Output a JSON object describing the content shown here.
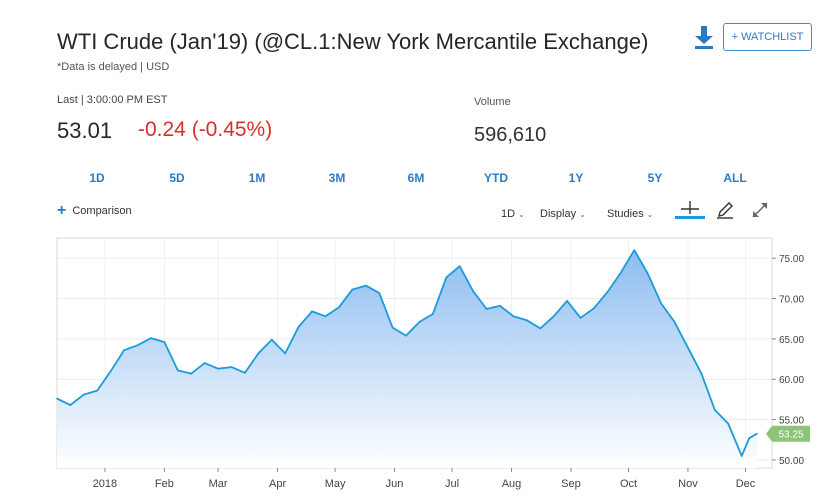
{
  "header": {
    "title": "WTI Crude (Jan'19) (@CL.1:New York Mercantile Exchange)",
    "subtitle": "*Data is delayed | USD",
    "watchlist_label": "+ WATCHLIST",
    "download_icon": "download-icon"
  },
  "quote": {
    "last_label": "Last | 3:00:00 PM EST",
    "price": "53.01",
    "change": "-0.24 (-0.45%)",
    "volume_label": "Volume",
    "volume": "596,610",
    "change_color": "#d5312b"
  },
  "ranges": [
    "1D",
    "5D",
    "1M",
    "3M",
    "6M",
    "YTD",
    "1Y",
    "5Y",
    "ALL"
  ],
  "active_range": "1Y",
  "toolbar": {
    "comparison_label": "Comparison",
    "interval_label": "1D",
    "display_label": "Display",
    "studies_label": "Studies",
    "icons": [
      "crosshair-icon",
      "pencil-icon",
      "expand-icon"
    ]
  },
  "chart_data": {
    "type": "area",
    "line_color": "#1a9bdb",
    "fill_color": "#9cc6f2",
    "last_value_label": "53.25",
    "last_value_badge_color": "#8cc57a",
    "ylim": [
      49,
      77.5
    ],
    "yticks": [
      "75.00",
      "70.00",
      "65.00",
      "60.00",
      "55.00",
      "50.00"
    ],
    "ytick_values": [
      75,
      70,
      65,
      60,
      55,
      50
    ],
    "xticks": [
      "2018",
      "Feb",
      "Mar",
      "Apr",
      "May",
      "Jun",
      "Jul",
      "Aug",
      "Sep",
      "Oct",
      "Nov",
      "Dec"
    ],
    "x": [
      "2017-12-07",
      "2017-12-14",
      "2017-12-21",
      "2017-12-28",
      "2018-01-04",
      "2018-01-11",
      "2018-01-18",
      "2018-01-25",
      "2018-02-01",
      "2018-02-08",
      "2018-02-15",
      "2018-02-22",
      "2018-03-01",
      "2018-03-08",
      "2018-03-15",
      "2018-03-22",
      "2018-03-29",
      "2018-04-05",
      "2018-04-12",
      "2018-04-19",
      "2018-04-26",
      "2018-05-03",
      "2018-05-10",
      "2018-05-17",
      "2018-05-24",
      "2018-05-31",
      "2018-06-07",
      "2018-06-14",
      "2018-06-21",
      "2018-06-28",
      "2018-07-05",
      "2018-07-12",
      "2018-07-19",
      "2018-07-26",
      "2018-08-02",
      "2018-08-09",
      "2018-08-16",
      "2018-08-23",
      "2018-08-30",
      "2018-09-06",
      "2018-09-13",
      "2018-09-20",
      "2018-09-27",
      "2018-10-04",
      "2018-10-11",
      "2018-10-18",
      "2018-10-25",
      "2018-11-01",
      "2018-11-08",
      "2018-11-15",
      "2018-11-22",
      "2018-11-29",
      "2018-12-03",
      "2018-12-07"
    ],
    "values": [
      57.6,
      56.8,
      58.1,
      58.6,
      61.0,
      63.6,
      64.2,
      65.1,
      64.6,
      61.1,
      60.7,
      62.0,
      61.3,
      61.5,
      60.8,
      63.2,
      64.9,
      63.2,
      66.5,
      68.4,
      67.8,
      68.9,
      71.1,
      71.6,
      70.7,
      66.4,
      65.4,
      67.1,
      68.1,
      72.6,
      74.0,
      70.9,
      68.7,
      69.1,
      67.8,
      67.3,
      66.3,
      67.8,
      69.7,
      67.6,
      68.8,
      70.8,
      73.2,
      76.0,
      73.1,
      69.4,
      67.1,
      63.9,
      60.7,
      56.2,
      54.5,
      50.5,
      52.7,
      53.25
    ]
  }
}
